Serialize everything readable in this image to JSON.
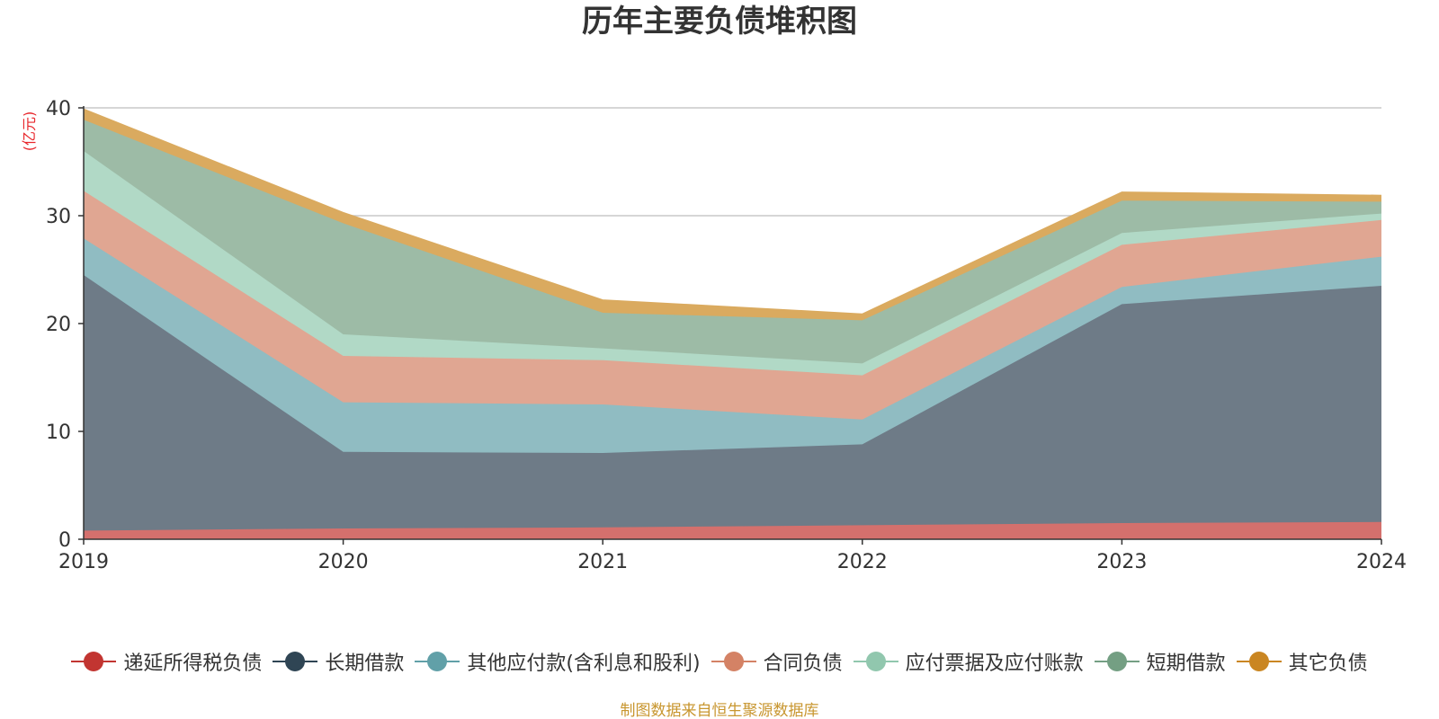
{
  "title": "历年主要负债堆积图",
  "unit_label": "(亿元)",
  "source_note": "制图数据来自恒生聚源数据库",
  "chart_data": {
    "type": "area",
    "stacked": true,
    "title": "历年主要负债堆积图",
    "xlabel": "",
    "ylabel": "(亿元)",
    "x": [
      "2019",
      "2020",
      "2021",
      "2022",
      "2023",
      "2024"
    ],
    "ylim": [
      0,
      40
    ],
    "yticks": [
      0,
      10,
      20,
      30,
      40
    ],
    "grid": true,
    "legend_position": "bottom",
    "series": [
      {
        "name": "递延所得税负债",
        "color": "#c23531",
        "fill": "#d4706d",
        "values": [
          0.8,
          1.0,
          1.1,
          1.3,
          1.5,
          1.6
        ]
      },
      {
        "name": "长期借款",
        "color": "#2f4554",
        "fill": "#6e7b87",
        "values": [
          23.7,
          7.1,
          6.9,
          7.5,
          20.3,
          21.9
        ]
      },
      {
        "name": "其他应付款(含利息和股利)",
        "color": "#61a0a8",
        "fill": "#90bcc2",
        "values": [
          3.4,
          4.6,
          4.5,
          2.3,
          1.6,
          2.7
        ]
      },
      {
        "name": "合同负债",
        "color": "#d48265",
        "fill": "#e0a692",
        "values": [
          4.4,
          4.3,
          4.1,
          4.1,
          3.9,
          3.4
        ]
      },
      {
        "name": "应付票据及应付账款",
        "color": "#91c7ae",
        "fill": "#b1d9c6",
        "values": [
          3.7,
          2.0,
          1.1,
          1.1,
          1.1,
          0.6
        ]
      },
      {
        "name": "短期借款",
        "color": "#749f83",
        "fill": "#9dbba6",
        "values": [
          2.9,
          10.3,
          3.3,
          4.0,
          3.0,
          1.1
        ]
      },
      {
        "name": "其它负债",
        "color": "#ca8622",
        "fill": "#daaa5f",
        "values": [
          1.0,
          1.0,
          1.2,
          0.6,
          0.8,
          0.6
        ]
      }
    ]
  }
}
